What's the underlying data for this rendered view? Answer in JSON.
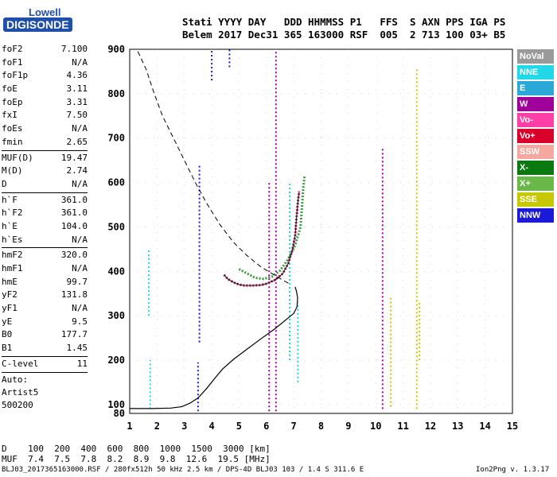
{
  "logo": {
    "line1": "Lowell",
    "line2": "DIGISONDE"
  },
  "header": {
    "line1": "Stati YYYY DAY   DDD HHMMSS P1   FFS  S AXN PPS IGA PS",
    "line2": "Belem 2017 Dec31 365 163000 RSF  005  2 713 100 03+ B5"
  },
  "params": [
    {
      "label": "foF2",
      "value": "7.100"
    },
    {
      "label": "foF1",
      "value": "N/A"
    },
    {
      "label": "foF1p",
      "value": "4.36"
    },
    {
      "label": "foE",
      "value": "3.11"
    },
    {
      "label": "foEp",
      "value": "3.31"
    },
    {
      "label": "fxI",
      "value": "7.50"
    },
    {
      "label": "foEs",
      "value": "N/A"
    },
    {
      "label": "fmin",
      "value": "2.65"
    },
    {
      "label": "MUF(D)",
      "value": "19.47"
    },
    {
      "label": "M(D)",
      "value": "2.74"
    },
    {
      "label": "D",
      "value": "N/A"
    },
    {
      "label": "h`F",
      "value": "361.0"
    },
    {
      "label": "h`F2",
      "value": "361.0"
    },
    {
      "label": "h`E",
      "value": "104.0"
    },
    {
      "label": "h`Es",
      "value": "N/A"
    },
    {
      "label": "hmF2",
      "value": "320.0"
    },
    {
      "label": "hmF1",
      "value": "N/A"
    },
    {
      "label": "hmE",
      "value": "99.7"
    },
    {
      "label": "yF2",
      "value": "131.8"
    },
    {
      "label": "yF1",
      "value": "N/A"
    },
    {
      "label": "yE",
      "value": "9.5"
    },
    {
      "label": "B0",
      "value": "177.7"
    },
    {
      "label": "B1",
      "value": "1.45"
    },
    {
      "label": "C-level",
      "value": "11"
    }
  ],
  "autoscale": {
    "line1": "Auto:",
    "line2": "Artist5",
    "line3": "500200"
  },
  "legend": [
    {
      "label": "NoVal",
      "color": "#9a9a9a"
    },
    {
      "label": "NNE",
      "color": "#22d8e8"
    },
    {
      "label": "E",
      "color": "#2aa8d8"
    },
    {
      "label": "W",
      "color": "#a0009a"
    },
    {
      "label": "Vo-",
      "color": "#ff3fa8"
    },
    {
      "label": "Vo+",
      "color": "#d8002a"
    },
    {
      "label": "SSW",
      "color": "#f5a8a0"
    },
    {
      "label": "X-",
      "color": "#0a7a10"
    },
    {
      "label": "X+",
      "color": "#6ab84a"
    },
    {
      "label": "SSE",
      "color": "#c8c800"
    },
    {
      "label": "NNW",
      "color": "#1a1ad8"
    }
  ],
  "muf_table": {
    "row1": "D    100  200  400  600  800  1000  1500  3000 [km]",
    "row2": "MUF  7.4  7.5  7.8  8.2  8.9  9.8  12.6  19.5 [MHz]"
  },
  "footer": {
    "left": "BLJ03_2017365163000.RSF / 280fx512h 50 kHz 2.5 km / DPS-4D BLJ03 103 / 1.4 S 311.6 E",
    "right": "Ion2Png v. 1.3.17"
  },
  "chart_data": {
    "type": "scatter",
    "title": "",
    "xlabel": "",
    "ylabel": "",
    "xlim": [
      1,
      15
    ],
    "ylim": [
      80,
      900
    ],
    "xticks": [
      1,
      2,
      3,
      4,
      5,
      6,
      7,
      8,
      9,
      10,
      11,
      12,
      13,
      14,
      15
    ],
    "yticks": [
      100,
      200,
      300,
      400,
      500,
      600,
      700,
      800,
      900
    ],
    "grid": true,
    "o_trace": [
      [
        4.45,
        392
      ],
      [
        4.6,
        382
      ],
      [
        4.8,
        375
      ],
      [
        5.0,
        370
      ],
      [
        5.2,
        368
      ],
      [
        5.5,
        368
      ],
      [
        5.8,
        369
      ],
      [
        6.0,
        372
      ],
      [
        6.3,
        380
      ],
      [
        6.6,
        395
      ],
      [
        6.8,
        418
      ],
      [
        6.95,
        448
      ],
      [
        7.05,
        480
      ],
      [
        7.1,
        520
      ],
      [
        7.15,
        555
      ],
      [
        7.2,
        580
      ]
    ],
    "x_trace": [
      [
        5.0,
        405
      ],
      [
        5.3,
        395
      ],
      [
        5.6,
        385
      ],
      [
        5.9,
        383
      ],
      [
        6.2,
        388
      ],
      [
        6.5,
        402
      ],
      [
        6.8,
        428
      ],
      [
        7.05,
        458
      ],
      [
        7.25,
        500
      ],
      [
        7.3,
        545
      ],
      [
        7.35,
        590
      ],
      [
        7.4,
        615
      ]
    ],
    "profile_solid": [
      [
        1.0,
        91
      ],
      [
        1.8,
        91
      ],
      [
        2.5,
        92
      ],
      [
        2.9,
        95
      ],
      [
        3.2,
        103
      ],
      [
        3.5,
        115
      ],
      [
        3.8,
        135
      ],
      [
        4.1,
        158
      ],
      [
        4.4,
        180
      ],
      [
        4.8,
        202
      ],
      [
        5.3,
        225
      ],
      [
        5.8,
        248
      ],
      [
        6.3,
        270
      ],
      [
        6.7,
        290
      ],
      [
        7.0,
        305
      ],
      [
        7.12,
        320
      ],
      [
        7.14,
        340
      ],
      [
        7.1,
        355
      ],
      [
        7.05,
        365
      ]
    ],
    "profile_dashed": [
      [
        1.3,
        895
      ],
      [
        1.6,
        855
      ],
      [
        1.9,
        800
      ],
      [
        2.2,
        750
      ],
      [
        2.6,
        700
      ],
      [
        3.0,
        650
      ],
      [
        3.4,
        600
      ],
      [
        3.8,
        555
      ],
      [
        4.3,
        505
      ],
      [
        4.8,
        465
      ],
      [
        5.3,
        435
      ],
      [
        5.8,
        410
      ],
      [
        6.2,
        395
      ],
      [
        6.6,
        380
      ],
      [
        6.9,
        370
      ]
    ],
    "vertical_streaks": [
      {
        "x": 1.7,
        "y1": 300,
        "y2": 450,
        "color": "#22d8e8"
      },
      {
        "x": 1.75,
        "y1": 90,
        "y2": 200,
        "color": "#22d8e8"
      },
      {
        "x": 3.5,
        "y1": 85,
        "y2": 195,
        "color": "#1a1ad8"
      },
      {
        "x": 3.55,
        "y1": 240,
        "y2": 640,
        "color": "#1a1ad8"
      },
      {
        "x": 4.0,
        "y1": 830,
        "y2": 900,
        "color": "#1a1ad8"
      },
      {
        "x": 4.65,
        "y1": 860,
        "y2": 900,
        "color": "#1a1ad8"
      },
      {
        "x": 6.1,
        "y1": 85,
        "y2": 600,
        "color": "#a0009a"
      },
      {
        "x": 6.35,
        "y1": 85,
        "y2": 900,
        "color": "#a0009a"
      },
      {
        "x": 6.85,
        "y1": 200,
        "y2": 600,
        "color": "#22d8e8"
      },
      {
        "x": 7.15,
        "y1": 150,
        "y2": 330,
        "color": "#22d8e8"
      },
      {
        "x": 10.25,
        "y1": 90,
        "y2": 680,
        "color": "#a0009a"
      },
      {
        "x": 10.55,
        "y1": 95,
        "y2": 340,
        "color": "#c8c800"
      },
      {
        "x": 11.5,
        "y1": 90,
        "y2": 860,
        "color": "#c8c800"
      },
      {
        "x": 11.6,
        "y1": 200,
        "y2": 330,
        "color": "#c8c800"
      }
    ]
  }
}
